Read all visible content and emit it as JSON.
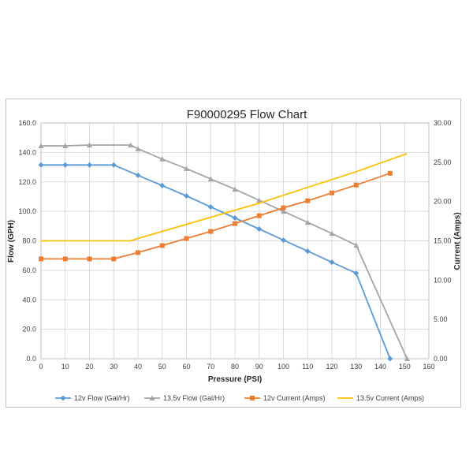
{
  "chart_data": {
    "type": "line",
    "title": "F90000295  Flow Chart",
    "xlabel": "Pressure (PSI)",
    "ylabel": "Flow (GPH)",
    "y2label": "Current (Amps)",
    "xlim": [
      0,
      160
    ],
    "ylim": [
      0,
      160
    ],
    "y2lim": [
      0,
      30
    ],
    "x_ticks": [
      "0",
      "10",
      "20",
      "30",
      "40",
      "50",
      "60",
      "70",
      "80",
      "90",
      "100",
      "110",
      "120",
      "130",
      "140",
      "150",
      "160"
    ],
    "y_ticks": [
      "0.0",
      "20.0",
      "40.0",
      "60.0",
      "80.0",
      "100.0",
      "120.0",
      "140.0",
      "160.0"
    ],
    "y2_ticks": [
      "0.00",
      "5.00",
      "10.00",
      "15.00",
      "20.00",
      "25.00",
      "30.00"
    ],
    "grid": true,
    "legend": "bottom",
    "series": [
      {
        "name": "12v Flow (Gal/Hr)",
        "axis": "left",
        "color": "#5b9bd5",
        "marker": "diamond",
        "x": [
          0,
          10,
          20,
          30,
          40,
          50,
          60,
          70,
          80,
          90,
          100,
          110,
          120,
          130,
          144
        ],
        "y": [
          131.5,
          131.5,
          131.5,
          131.5,
          124.5,
          117.5,
          110.5,
          103,
          95.5,
          88,
          80.5,
          73,
          65.5,
          58,
          0
        ]
      },
      {
        "name": "13.5v Flow (Gal/Hr)",
        "axis": "left",
        "color": "#a5a5a5",
        "marker": "triangle",
        "x": [
          0,
          10,
          20,
          37,
          40,
          50,
          60,
          70,
          80,
          90,
          100,
          110,
          120,
          130,
          151
        ],
        "y": [
          144.5,
          144.5,
          145,
          145,
          142.5,
          135.5,
          129,
          122,
          115,
          107.5,
          100,
          92.5,
          85,
          77,
          0
        ]
      },
      {
        "name": "12v Current (Amps)",
        "axis": "right",
        "color": "#ed7d31",
        "marker": "square",
        "x": [
          0,
          10,
          20,
          30,
          40,
          50,
          60,
          70,
          80,
          90,
          100,
          110,
          120,
          130,
          144
        ],
        "y": [
          12.7,
          12.7,
          12.7,
          12.7,
          13.5,
          14.4,
          15.3,
          16.2,
          17.2,
          18.2,
          19.2,
          20.1,
          21.1,
          22.1,
          23.6
        ]
      },
      {
        "name": "13.5v Current (Amps)",
        "axis": "right",
        "color": "#ffc000",
        "marker": "none",
        "x": [
          0,
          10,
          20,
          37,
          40,
          50,
          60,
          70,
          80,
          90,
          100,
          110,
          120,
          130,
          140,
          151
        ],
        "y": [
          15,
          15,
          15,
          15,
          15.3,
          16.2,
          17.1,
          18.0,
          18.9,
          19.8,
          20.8,
          21.8,
          22.8,
          23.8,
          24.9,
          26.1
        ]
      }
    ]
  }
}
